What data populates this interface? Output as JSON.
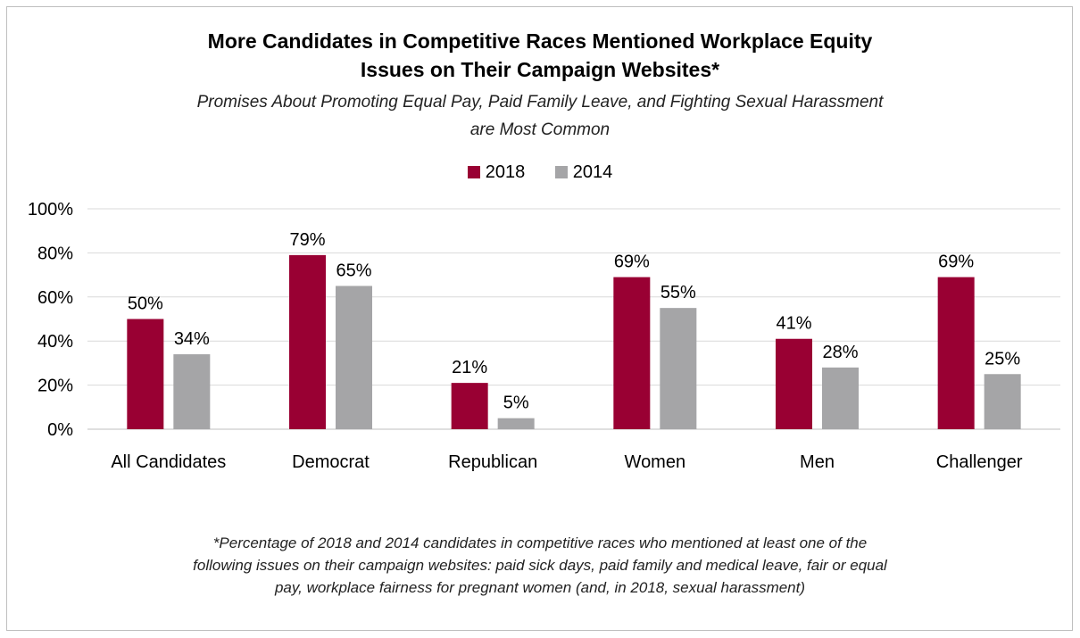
{
  "title_line1": "More Candidates in Competitive Races Mentioned Workplace Equity",
  "title_line2": "Issues on Their Campaign Websites*",
  "subtitle_line1": "Promises About Promoting Equal Pay, Paid Family Leave, and Fighting Sexual Harassment",
  "subtitle_line2": "are Most Common",
  "footnote_line1": "*Percentage of 2018 and 2014 candidates in competitive races who mentioned at least one of the",
  "footnote_line2": "following issues on their campaign websites: paid sick days, paid family and medical leave, fair or equal",
  "footnote_line3": "pay, workplace fairness for pregnant women (and, in 2018, sexual harassment)",
  "colors": {
    "s2018": "#990033",
    "s2014": "#a5a5a7",
    "grid": "#d9d9d9",
    "axis": "#bfbfbf"
  },
  "chart_data": {
    "type": "bar",
    "categories": [
      "All Candidates",
      "Democrat",
      "Republican",
      "Women",
      "Men",
      "Challenger"
    ],
    "series": [
      {
        "name": "2018",
        "values": [
          50,
          79,
          21,
          69,
          41,
          69
        ]
      },
      {
        "name": "2014",
        "values": [
          34,
          65,
          5,
          55,
          28,
          25
        ]
      }
    ],
    "ylim": [
      0,
      100
    ],
    "yticks": [
      "0%",
      "20%",
      "40%",
      "60%",
      "80%",
      "100%"
    ],
    "data_labels": [
      [
        "50%",
        "79%",
        "21%",
        "69%",
        "41%",
        "69%"
      ],
      [
        "34%",
        "65%",
        "5%",
        "55%",
        "28%",
        "25%"
      ]
    ],
    "legend": "top-center",
    "grid": true
  }
}
